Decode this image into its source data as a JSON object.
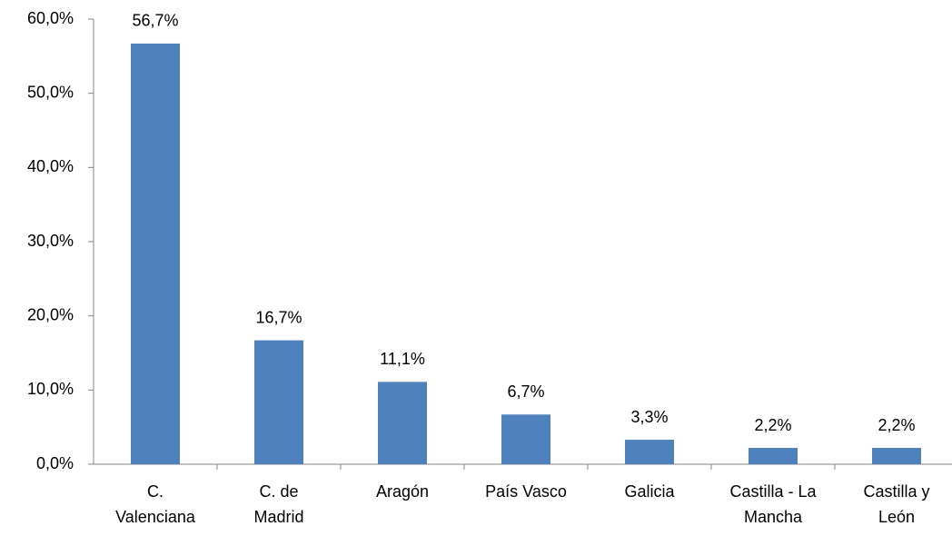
{
  "chart_data": {
    "type": "bar",
    "categories": [
      "C.\nValenciana",
      "C. de\nMadrid",
      "Aragón",
      "País Vasco",
      "Galicia",
      "Castilla - La\nMancha",
      "Castilla y\nLeón"
    ],
    "values": [
      56.7,
      16.7,
      11.1,
      6.7,
      3.3,
      2.2,
      2.2
    ],
    "value_labels": [
      "56,7%",
      "16,7%",
      "11,1%",
      "6,7%",
      "3,3%",
      "2,2%",
      "2,2%"
    ],
    "color": "#4f81bd",
    "ylim": [
      0,
      60
    ],
    "yticks": [
      {
        "value": 0,
        "label": "0,0%"
      },
      {
        "value": 10,
        "label": "10,0%"
      },
      {
        "value": 20,
        "label": "20,0%"
      },
      {
        "value": 30,
        "label": "30,0%"
      },
      {
        "value": 40,
        "label": "40,0%"
      },
      {
        "value": 50,
        "label": "50,0%"
      },
      {
        "value": 60,
        "label": "60,0%"
      }
    ],
    "grid": false
  }
}
